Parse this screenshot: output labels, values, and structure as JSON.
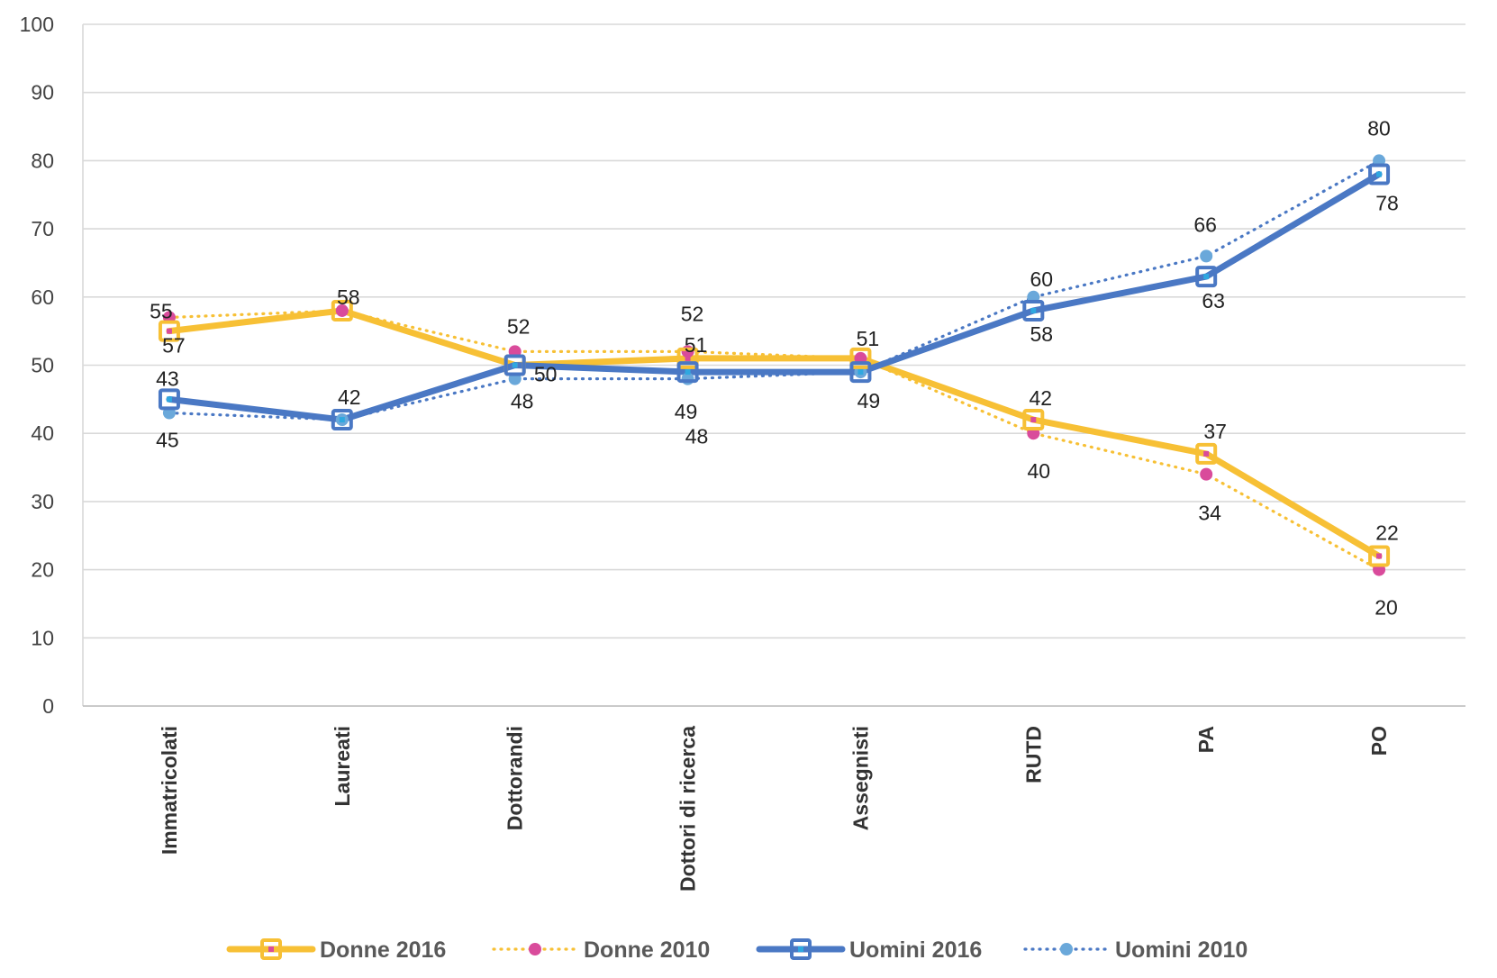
{
  "chart_data": {
    "type": "line",
    "categories": [
      "Immatricolati",
      "Laureati",
      "Dottorandi",
      "Dottori di ricerca",
      "Assegnisti",
      "RUTD",
      "PA",
      "PO"
    ],
    "ylim": [
      0,
      100
    ],
    "yticks": [
      0,
      10,
      20,
      30,
      40,
      50,
      60,
      70,
      80,
      90,
      100
    ],
    "grid": true,
    "legend_position": "bottom",
    "series": [
      {
        "name": "Donne 2016",
        "values": [
          55,
          58,
          50,
          51,
          51,
          42,
          37,
          22
        ],
        "labels": [
          "55",
          "58",
          "50",
          "51",
          "51",
          "42",
          "37",
          "22"
        ],
        "color": "#F7C035",
        "marker_color": "#D94B9B",
        "line_style": "solid",
        "marker": "square"
      },
      {
        "name": "Donne 2010",
        "values": [
          57,
          58,
          52,
          52,
          51,
          40,
          34,
          20
        ],
        "labels": [
          "57",
          "",
          "52",
          "52",
          "",
          "40",
          "34",
          "20"
        ],
        "color": "#F7C035",
        "marker_color": "#D94B9B",
        "line_style": "dotted",
        "marker": "circle"
      },
      {
        "name": "Uomini 2016",
        "values": [
          45,
          42,
          50,
          49,
          49,
          58,
          63,
          78
        ],
        "labels": [
          "45",
          "42",
          "",
          "49",
          "49",
          "58",
          "63",
          "78"
        ],
        "color": "#4A78C4",
        "marker_color": "#2FA8E0",
        "line_style": "solid",
        "marker": "square"
      },
      {
        "name": "Uomini 2010",
        "values": [
          43,
          42,
          48,
          48,
          49,
          60,
          66,
          80
        ],
        "labels": [
          "43",
          "",
          "48",
          "48",
          "",
          "60",
          "66",
          "80"
        ],
        "color": "#4A78C4",
        "marker_color": "#6AA8DA",
        "line_style": "dotted",
        "marker": "circle"
      }
    ]
  }
}
